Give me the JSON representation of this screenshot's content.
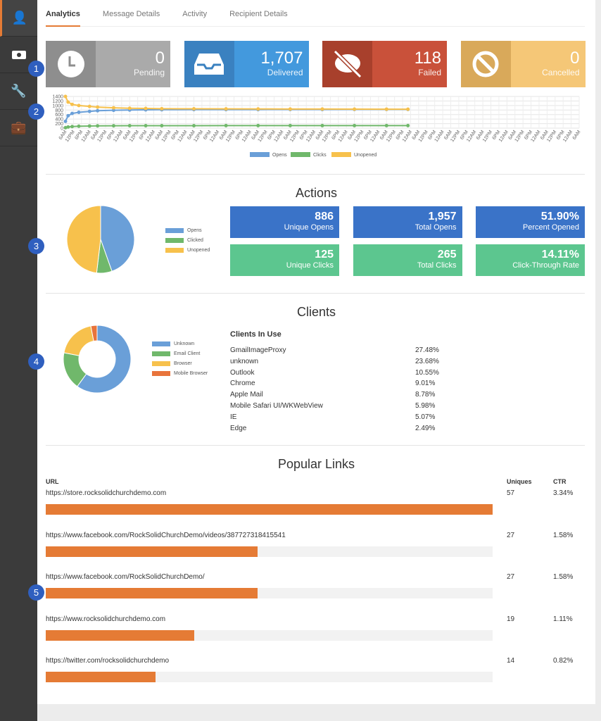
{
  "tabs": [
    "Analytics",
    "Message Details",
    "Activity",
    "Recipient Details"
  ],
  "cards": [
    {
      "value": "0",
      "label": "Pending",
      "icon": "clock-icon",
      "color": "#aaaaaa",
      "dark": "#8e8e8e"
    },
    {
      "value": "1,707",
      "label": "Delivered",
      "icon": "inbox-icon",
      "color": "#4399dd",
      "dark": "#3a81c0"
    },
    {
      "value": "118",
      "label": "Failed",
      "icon": "comment-slash-icon",
      "color": "#c9513a",
      "dark": "#a8402c"
    },
    {
      "value": "0",
      "label": "Cancelled",
      "icon": "ban-icon",
      "color": "#f5c777",
      "dark": "#d9a95a"
    }
  ],
  "badges": [
    "1",
    "2",
    "3",
    "4",
    "5"
  ],
  "chart_data": [
    {
      "type": "line",
      "yticks": [
        0,
        200,
        400,
        600,
        800,
        1000,
        1200,
        1400
      ],
      "ylim": [
        0,
        1400
      ],
      "xticks": [
        "6AM",
        "12PM",
        "6PM",
        "12AM",
        "6AM",
        "12PM",
        "6PM",
        "12AM",
        "6AM",
        "12PM",
        "6PM",
        "12AM",
        "6AM",
        "12PM",
        "6PM",
        "12AM",
        "6AM",
        "12PM",
        "6PM",
        "12AM",
        "6AM",
        "12PM",
        "6PM",
        "12AM",
        "6AM",
        "12PM",
        "6PM",
        "12AM",
        "6AM",
        "12PM",
        "6PM",
        "12AM",
        "6AM",
        "12PM",
        "6PM",
        "12AM",
        "6AM",
        "12PM",
        "6PM",
        "12AM",
        "6AM",
        "12PM",
        "6PM",
        "12AM",
        "6AM",
        "12PM",
        "6PM",
        "12AM",
        "6AM",
        "12PM",
        "6PM",
        "12AM",
        "6AM",
        "12PM",
        "6PM",
        "12AM",
        "6AM",
        "12PM",
        "6PM",
        "12AM",
        "6AM",
        "12PM",
        "6PM",
        "12AM",
        "6AM"
      ],
      "x": [
        0,
        2,
        5,
        10,
        18,
        24,
        36,
        48,
        60,
        72,
        96,
        120,
        144,
        168,
        192,
        216,
        240,
        256
      ],
      "series": [
        {
          "name": "Opens",
          "color": "#6a9fd8",
          "values": [
            300,
            550,
            650,
            700,
            740,
            770,
            790,
            800,
            810,
            815,
            820,
            820,
            822,
            825,
            826,
            828,
            830,
            830
          ]
        },
        {
          "name": "Clicks",
          "color": "#70b86b",
          "values": [
            20,
            50,
            70,
            85,
            95,
            100,
            105,
            108,
            110,
            110,
            110,
            112,
            112,
            112,
            112,
            112,
            112,
            112
          ]
        },
        {
          "name": "Unopened",
          "color": "#f7c14c",
          "values": [
            1400,
            1150,
            1050,
            1000,
            960,
            930,
            900,
            880,
            870,
            860,
            855,
            850,
            848,
            845,
            843,
            840,
            838,
            838
          ]
        }
      ]
    },
    {
      "type": "pie",
      "title": "Actions",
      "labels": [
        "Opens",
        "Clicked",
        "Unopened"
      ],
      "values": [
        761,
        125,
        821
      ],
      "colors": [
        "#6a9fd8",
        "#70b86b",
        "#f7c14c"
      ]
    },
    {
      "type": "pie",
      "title": "Clients",
      "labels": [
        "Unknown",
        "Email Client",
        "Browser",
        "Mobile Browser"
      ],
      "values": [
        60,
        18,
        19,
        3
      ],
      "colors": [
        "#6a9fd8",
        "#70b86b",
        "#f7c14c",
        "#e8743b"
      ]
    }
  ],
  "actions": {
    "title": "Actions",
    "metrics": [
      {
        "value": "886",
        "label": "Unique Opens",
        "color": "#3a73c8"
      },
      {
        "value": "1,957",
        "label": "Total Opens",
        "color": "#3a73c8"
      },
      {
        "value": "51.90%",
        "label": "Percent Opened",
        "color": "#3a73c8"
      },
      {
        "value": "125",
        "label": "Unique Clicks",
        "color": "#5cc68f"
      },
      {
        "value": "265",
        "label": "Total Clicks",
        "color": "#5cc68f"
      },
      {
        "value": "14.11%",
        "label": "Click-Through Rate",
        "color": "#5cc68f"
      }
    ]
  },
  "clients": {
    "title": "Clients",
    "in_use_title": "Clients In Use",
    "rows": [
      {
        "name": "GmailImageProxy",
        "pct": "27.48%"
      },
      {
        "name": "unknown",
        "pct": "23.68%"
      },
      {
        "name": "Outlook",
        "pct": "10.55%"
      },
      {
        "name": "Chrome",
        "pct": "9.01%"
      },
      {
        "name": "Apple Mail",
        "pct": "8.78%"
      },
      {
        "name": "Mobile Safari UI/WKWebView",
        "pct": "5.98%"
      },
      {
        "name": "IE",
        "pct": "5.07%"
      },
      {
        "name": "Edge",
        "pct": "2.49%"
      }
    ]
  },
  "links": {
    "title": "Popular Links",
    "headers": {
      "url": "URL",
      "uniques": "Uniques",
      "ctr": "CTR"
    },
    "rows": [
      {
        "url": "https://store.rocksolidchurchdemo.com",
        "uniques": "57",
        "ctr": "3.34%",
        "pct": 100
      },
      {
        "url": "https://www.facebook.com/RockSolidChurchDemo/videos/387727318415541",
        "uniques": "27",
        "ctr": "1.58%",
        "pct": 47.4
      },
      {
        "url": "https://www.facebook.com/RockSolidChurchDemo/",
        "uniques": "27",
        "ctr": "1.58%",
        "pct": 47.4
      },
      {
        "url": "https://www.rocksolidchurchdemo.com",
        "uniques": "19",
        "ctr": "1.11%",
        "pct": 33.3
      },
      {
        "url": "https://twitter.com/rocksolidchurchdemo",
        "uniques": "14",
        "ctr": "0.82%",
        "pct": 24.6
      }
    ]
  }
}
